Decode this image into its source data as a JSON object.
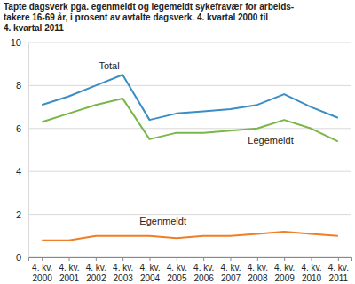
{
  "chart_data": {
    "type": "line",
    "title": "Tapte dagsverk pga. egenmeldt og legemeldt sykefravær for arbeids-\ntakere 16-69 år, i prosent av avtalte dagsverk. 4. kvartal 2000 til\n4. kvartal 2011",
    "categories": [
      "4. kv. 2000",
      "4. kv. 2001",
      "4. kv. 2002",
      "4. kv. 2003",
      "4. kv. 2004",
      "4. kv. 2005",
      "4. kv. 2006",
      "4. kv. 2007",
      "4. kv. 2008",
      "4. kv. 2009",
      "4. kv. 2010",
      "4. kv. 2011"
    ],
    "series": [
      {
        "name": "Total",
        "color": "#3a8dc5",
        "values": [
          7.1,
          7.5,
          8.0,
          8.5,
          6.4,
          6.7,
          6.8,
          6.9,
          7.1,
          7.6,
          7.0,
          6.5
        ]
      },
      {
        "name": "Legemeldt",
        "color": "#7ab648",
        "values": [
          6.3,
          6.7,
          7.1,
          7.4,
          5.5,
          5.8,
          5.8,
          5.9,
          6.0,
          6.4,
          6.0,
          5.4
        ]
      },
      {
        "name": "Egenmeldt",
        "color": "#f07e26",
        "values": [
          0.8,
          0.8,
          1.0,
          1.0,
          1.0,
          0.9,
          1.0,
          1.0,
          1.1,
          1.2,
          1.1,
          1.0
        ]
      }
    ],
    "ylim": [
      0,
      10
    ],
    "yticks": [
      0,
      2,
      4,
      6,
      8,
      10
    ],
    "grid": true
  }
}
